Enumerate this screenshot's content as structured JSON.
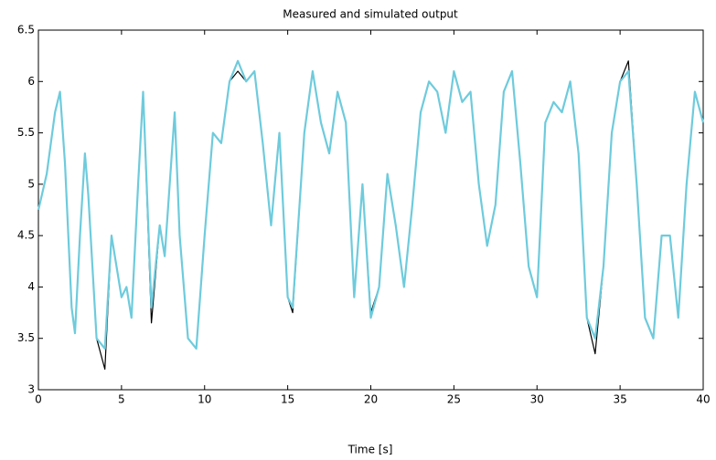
{
  "chart_data": {
    "type": "line",
    "title": "Measured and simulated output",
    "x_label": "Time [s]",
    "x": [
      0,
      0.5,
      1,
      1.3,
      1.6,
      2,
      2.2,
      2.5,
      2.8,
      3,
      3.5,
      4,
      4.4,
      5,
      5.3,
      5.6,
      6,
      6.3,
      6.8,
      7.3,
      7.6,
      8.2,
      8.5,
      9,
      9.5,
      10,
      10.5,
      11,
      11.5,
      12,
      12.5,
      13,
      13.5,
      14,
      14.5,
      15,
      15.3,
      16,
      16.5,
      17,
      17.5,
      18,
      18.5,
      19,
      19.5,
      20,
      20.5,
      21,
      21.5,
      22,
      22.5,
      23,
      23.5,
      24,
      24.5,
      25,
      25.5,
      26,
      26.5,
      27,
      27.5,
      28,
      28.5,
      29,
      29.5,
      30,
      30.5,
      31,
      31.5,
      32,
      32.5,
      33,
      33.5,
      34,
      34.5,
      35,
      35.5,
      36,
      36.5,
      37,
      37.5,
      38,
      38.5,
      39,
      39.5,
      40
    ],
    "series": [
      {
        "color": "#000000",
        "values": [
          4.75,
          5.1,
          5.7,
          5.9,
          5.2,
          3.8,
          3.55,
          4.5,
          5.3,
          4.9,
          3.5,
          3.2,
          4.5,
          3.9,
          4.0,
          3.7,
          5.0,
          5.9,
          3.65,
          4.6,
          4.3,
          5.7,
          4.5,
          3.5,
          3.4,
          4.5,
          5.5,
          5.4,
          6.0,
          6.1,
          6.0,
          6.1,
          5.4,
          4.6,
          5.5,
          3.9,
          3.75,
          5.5,
          6.1,
          5.6,
          5.3,
          5.9,
          5.6,
          3.9,
          5.0,
          3.75,
          4.0,
          5.1,
          4.6,
          4.0,
          4.8,
          5.7,
          6.0,
          5.9,
          5.5,
          6.1,
          5.8,
          5.9,
          5.0,
          4.4,
          4.8,
          5.9,
          6.1,
          5.2,
          4.2,
          3.9,
          5.6,
          5.8,
          5.7,
          6.0,
          5.3,
          3.7,
          3.35,
          4.2,
          5.5,
          6.0,
          6.2,
          5.0,
          3.7,
          3.5,
          4.5,
          4.5,
          3.7,
          5.0,
          5.9,
          5.6
        ]
      },
      {
        "color": "#6ecbdc",
        "values": [
          4.75,
          5.1,
          5.7,
          5.9,
          5.2,
          3.8,
          3.55,
          4.5,
          5.3,
          4.9,
          3.5,
          3.4,
          4.5,
          3.9,
          4.0,
          3.7,
          5.0,
          5.9,
          3.8,
          4.6,
          4.3,
          5.7,
          4.5,
          3.5,
          3.4,
          4.5,
          5.5,
          5.4,
          6.0,
          6.2,
          6.0,
          6.1,
          5.4,
          4.6,
          5.5,
          3.9,
          3.8,
          5.5,
          6.1,
          5.6,
          5.3,
          5.9,
          5.6,
          3.9,
          5.0,
          3.7,
          4.0,
          5.1,
          4.6,
          4.0,
          4.8,
          5.7,
          6.0,
          5.9,
          5.5,
          6.1,
          5.8,
          5.9,
          5.0,
          4.4,
          4.8,
          5.9,
          6.1,
          5.2,
          4.2,
          3.9,
          5.6,
          5.8,
          5.7,
          6.0,
          5.3,
          3.7,
          3.5,
          4.2,
          5.5,
          6.0,
          6.1,
          5.0,
          3.7,
          3.5,
          4.5,
          4.5,
          3.7,
          5.0,
          5.9,
          5.6
        ]
      }
    ],
    "xlim": [
      0,
      40
    ],
    "xticks": [
      0,
      5,
      10,
      15,
      20,
      25,
      30,
      35,
      40
    ],
    "ylim": [
      3,
      6.5
    ],
    "yticks": [
      3,
      3.5,
      4,
      4.5,
      5,
      5.5,
      6,
      6.5
    ],
    "grid": false
  }
}
